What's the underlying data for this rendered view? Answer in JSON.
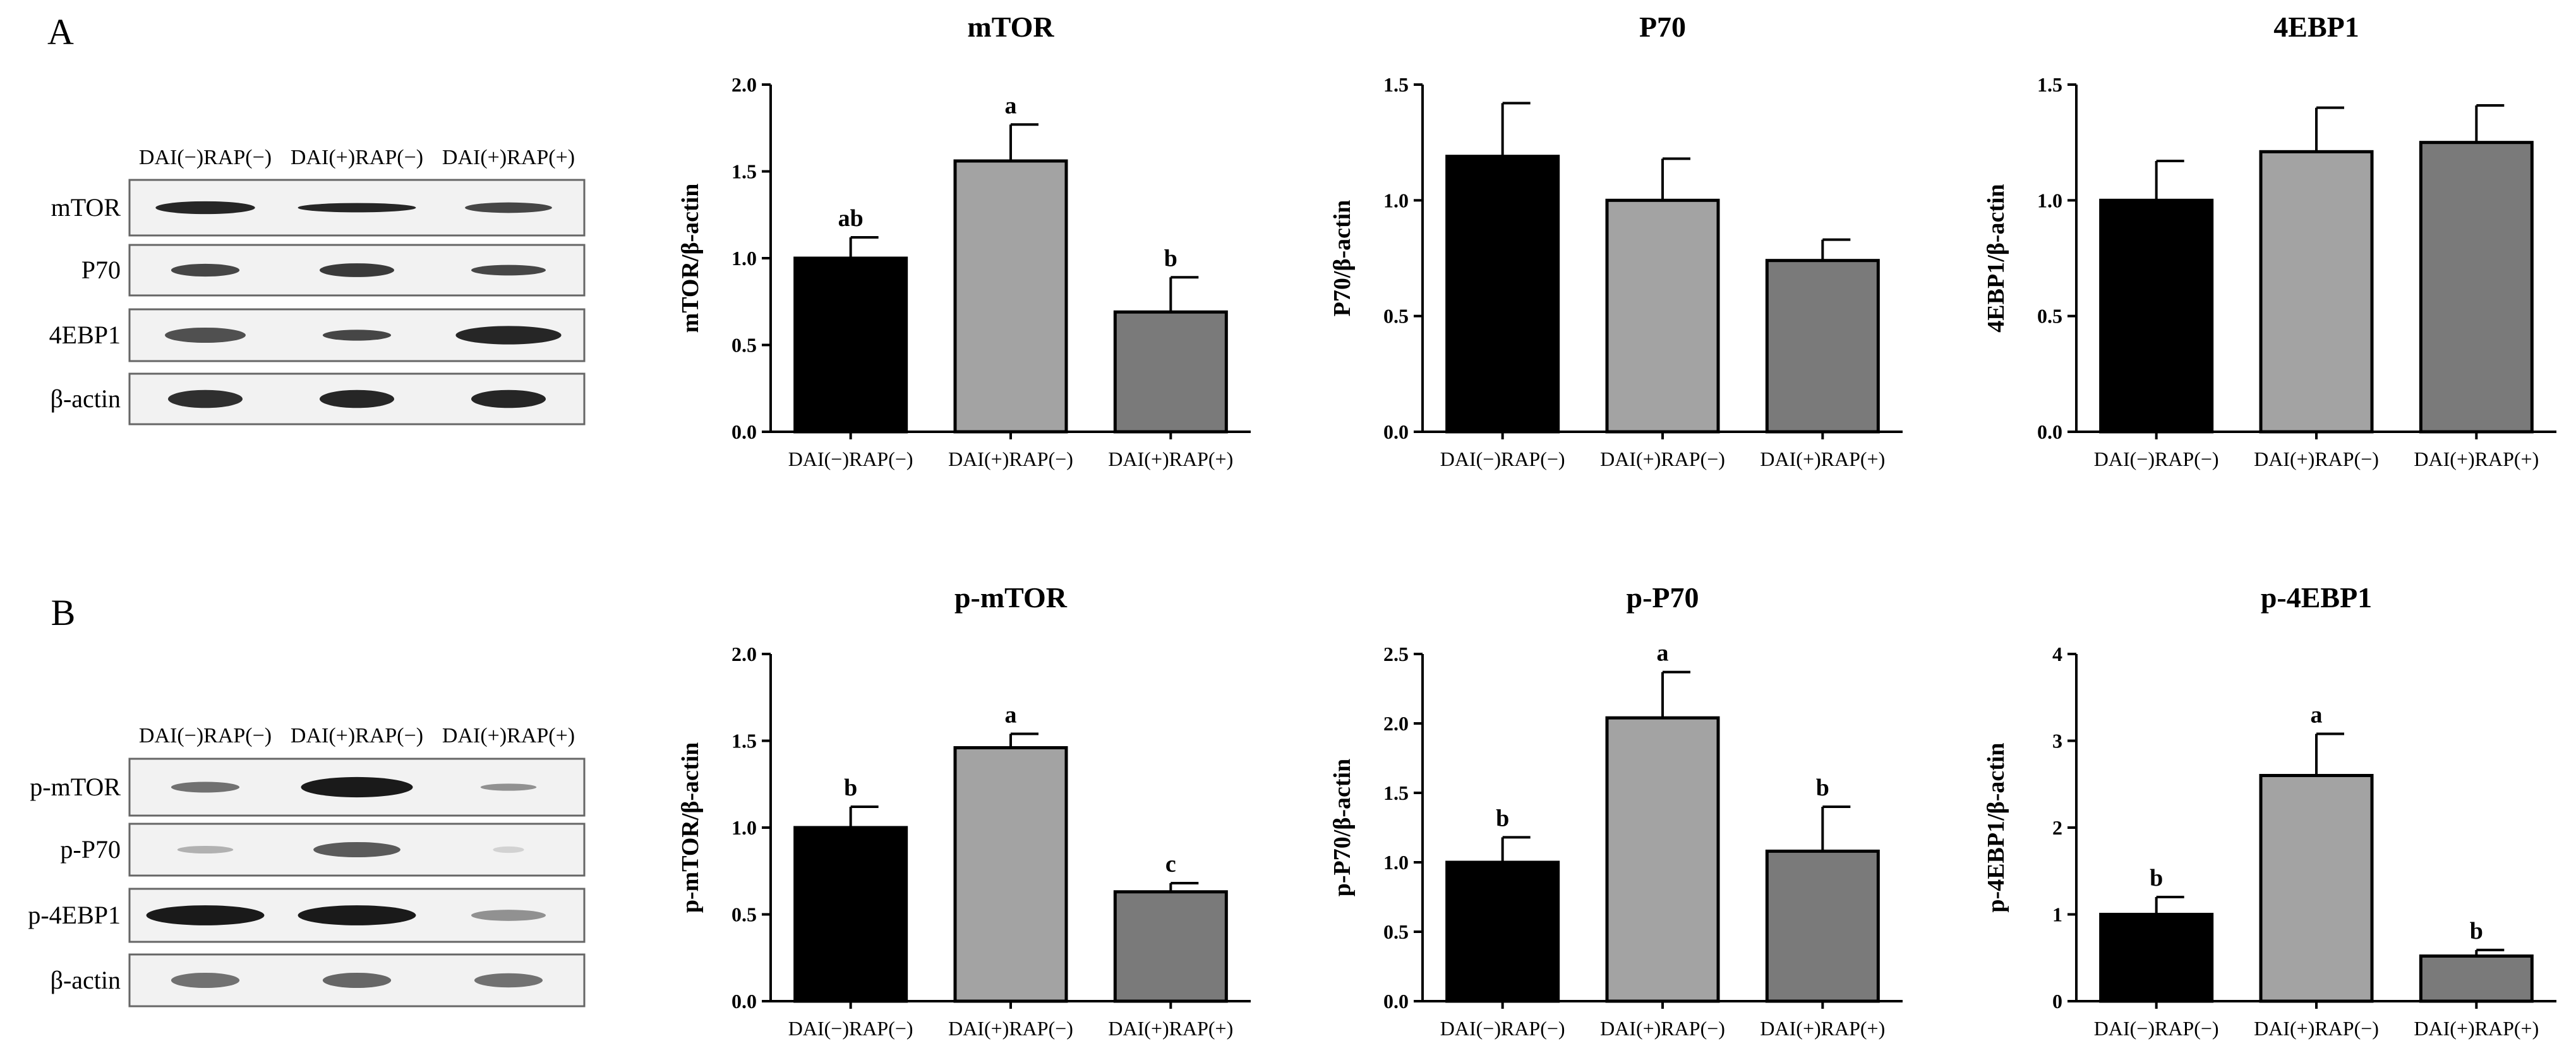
{
  "figure": {
    "panel_labels": [
      "A",
      "B"
    ],
    "colors": {
      "group1": "#000000",
      "group2": "#a3a3a3",
      "group3": "#7a7a7a",
      "blot_band": "#1a1a1a",
      "blot_bg": "#f2f2f2"
    },
    "blots": [
      {
        "panel": "A",
        "headers": [
          "DAI(−)RAP(−)",
          "DAI(+)RAP(−)",
          "DAI(+)RAP(+)"
        ],
        "rows": [
          "mTOR",
          "P70",
          "4EBP1",
          "β-actin"
        ]
      },
      {
        "panel": "B",
        "headers": [
          "DAI(−)RAP(−)",
          "DAI(+)RAP(−)",
          "DAI(+)RAP(+)"
        ],
        "rows": [
          "p-mTOR",
          "p-P70",
          "p-4EBP1",
          "β-actin"
        ]
      }
    ]
  },
  "chart_data": [
    {
      "type": "bar",
      "title": "mTOR",
      "ylabel": "mTOR/β-actin",
      "categories": [
        "DAI(−)RAP(−)",
        "DAI(+)RAP(−)",
        "DAI(+)RAP(+)"
      ],
      "values": [
        1.0,
        1.56,
        0.69
      ],
      "errors": [
        0.12,
        0.21,
        0.2
      ],
      "letters": [
        "ab",
        "a",
        "b"
      ],
      "ylim": [
        0,
        2.0
      ],
      "yticks": [
        "0.0",
        "0.5",
        "1.0",
        "1.5",
        "2.0"
      ]
    },
    {
      "type": "bar",
      "title": "P70",
      "ylabel": "P70/β-actin",
      "categories": [
        "DAI(−)RAP(−)",
        "DAI(+)RAP(−)",
        "DAI(+)RAP(+)"
      ],
      "values": [
        1.19,
        1.0,
        0.74
      ],
      "errors": [
        0.23,
        0.18,
        0.09
      ],
      "letters": [
        "",
        "",
        ""
      ],
      "ylim": [
        0,
        1.5
      ],
      "yticks": [
        "0.0",
        "0.5",
        "1.0",
        "1.5"
      ]
    },
    {
      "type": "bar",
      "title": "4EBP1",
      "ylabel": "4EBP1/β-actin",
      "categories": [
        "DAI(−)RAP(−)",
        "DAI(+)RAP(−)",
        "DAI(+)RAP(+)"
      ],
      "values": [
        1.0,
        1.21,
        1.25
      ],
      "errors": [
        0.17,
        0.19,
        0.16
      ],
      "letters": [
        "",
        "",
        ""
      ],
      "ylim": [
        0,
        1.5
      ],
      "yticks": [
        "0.0",
        "0.5",
        "1.0",
        "1.5"
      ]
    },
    {
      "type": "bar",
      "title": "p-mTOR",
      "ylabel": "p-mTOR/β-actin",
      "categories": [
        "DAI(−)RAP(−)",
        "DAI(+)RAP(−)",
        "DAI(+)RAP(+)"
      ],
      "values": [
        1.0,
        1.46,
        0.63
      ],
      "errors": [
        0.12,
        0.08,
        0.05
      ],
      "letters": [
        "b",
        "a",
        "c"
      ],
      "ylim": [
        0,
        2.0
      ],
      "yticks": [
        "0.0",
        "0.5",
        "1.0",
        "1.5",
        "2.0"
      ]
    },
    {
      "type": "bar",
      "title": "p-P70",
      "ylabel": "p-P70/β-actin",
      "categories": [
        "DAI(−)RAP(−)",
        "DAI(+)RAP(−)",
        "DAI(+)RAP(+)"
      ],
      "values": [
        1.0,
        2.04,
        1.08
      ],
      "errors": [
        0.18,
        0.33,
        0.32
      ],
      "letters": [
        "b",
        "a",
        "b"
      ],
      "ylim": [
        0,
        2.5
      ],
      "yticks": [
        "0.0",
        "0.5",
        "1.0",
        "1.5",
        "2.0",
        "2.5"
      ]
    },
    {
      "type": "bar",
      "title": "p-4EBP1",
      "ylabel": "p-4EBP1/β-actin",
      "categories": [
        "DAI(−)RAP(−)",
        "DAI(+)RAP(−)",
        "DAI(+)RAP(+)"
      ],
      "values": [
        1.0,
        2.6,
        0.52
      ],
      "errors": [
        0.2,
        0.48,
        0.07
      ],
      "letters": [
        "b",
        "a",
        "b"
      ],
      "ylim": [
        0,
        4
      ],
      "yticks": [
        "0",
        "1",
        "2",
        "3",
        "4"
      ]
    }
  ]
}
